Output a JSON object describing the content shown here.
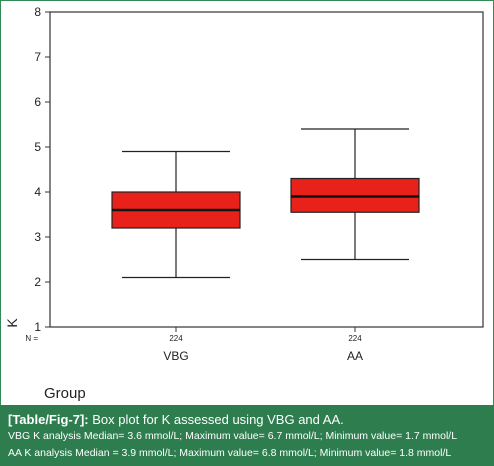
{
  "chart_data": {
    "type": "boxplot",
    "ylabel": "K",
    "xlabel": "Group",
    "ylim": [
      1,
      8
    ],
    "yticks": [
      "1",
      "2",
      "3",
      "4",
      "5",
      "6",
      "7",
      "8"
    ],
    "n_label": "N =",
    "categories": [
      "VBG",
      "AA"
    ],
    "n_values": [
      "224",
      "224"
    ],
    "boxes": [
      {
        "category": "VBG",
        "min": 2.1,
        "q1": 3.2,
        "median": 3.6,
        "q3": 4.0,
        "max": 4.9
      },
      {
        "category": "AA",
        "min": 2.5,
        "q1": 3.55,
        "median": 3.9,
        "q3": 4.3,
        "max": 5.4
      }
    ],
    "box_color": "#e8221b"
  },
  "caption": {
    "fig_label": "[Table/Fig-7]:",
    "title": "Box plot for K assessed using VBG and AA.",
    "line1": "VBG K analysis Median= 3.6 mmol/L; Maximum value= 6.7 mmol/L; Minimum value= 1.7 mmol/L",
    "line2": "AA K analysis Median = 3.9 mmol/L; Maximum value= 6.8 mmol/L; Minimum value= 1.8 mmol/L",
    "background": "#2e7d4f"
  }
}
